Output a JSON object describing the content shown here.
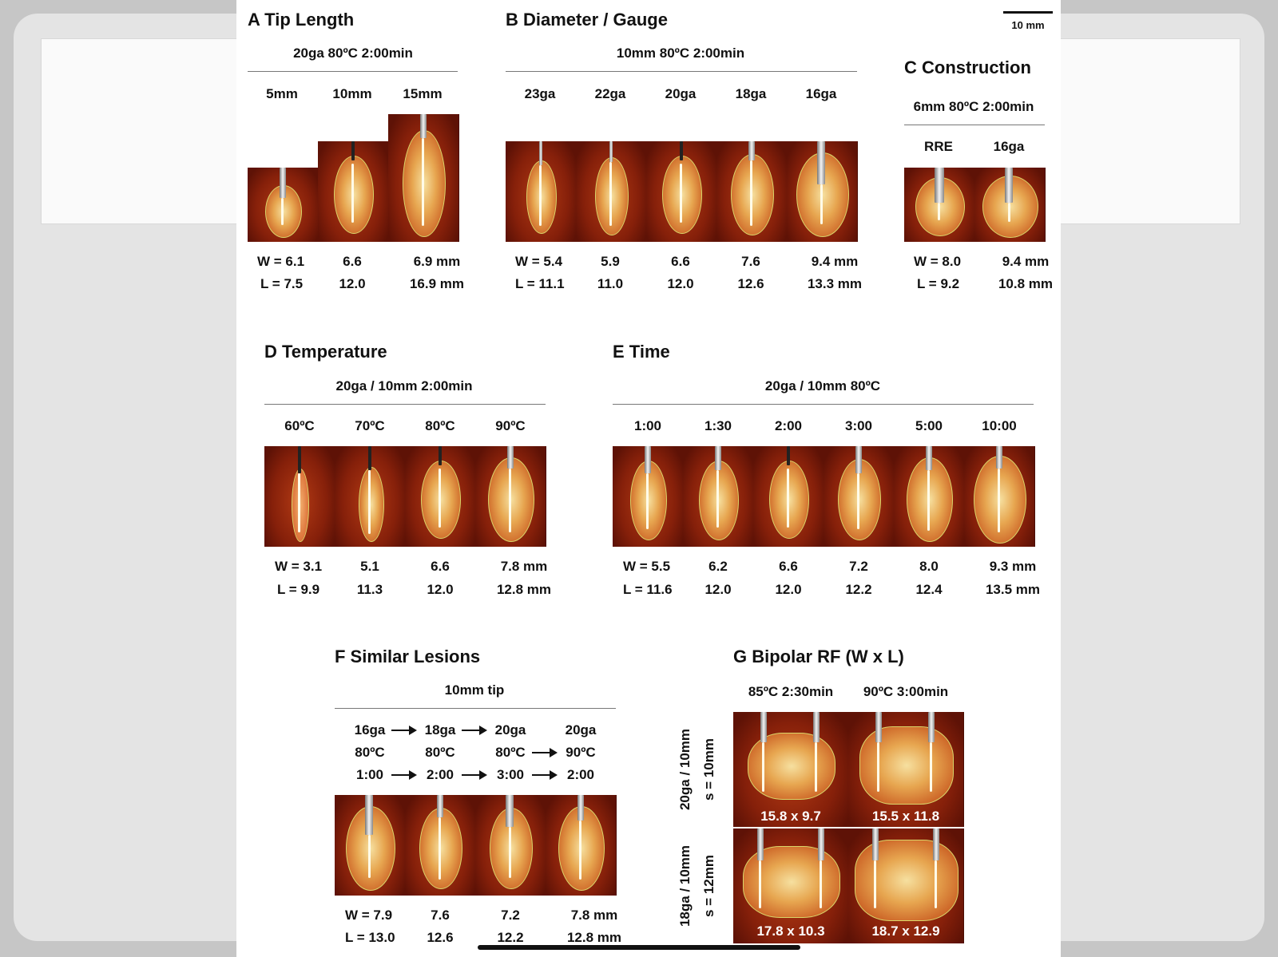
{
  "scale_bar": "10 mm",
  "panels": {
    "A": {
      "title": "A  Tip Length",
      "condition": "20ga  80ºC  2:00min",
      "columns": [
        "5mm",
        "10mm",
        "15mm"
      ],
      "w": [
        "W = 6.1",
        "6.6",
        "6.9  mm"
      ],
      "l": [
        "L = 7.5",
        "12.0",
        "16.9 mm"
      ]
    },
    "B": {
      "title": "B  Diameter / Gauge",
      "condition": "10mm  80ºC  2:00min",
      "columns": [
        "23ga",
        "22ga",
        "20ga",
        "18ga",
        "16ga"
      ],
      "w": [
        "W = 5.4",
        "5.9",
        "6.6",
        "7.6",
        "9.4  mm"
      ],
      "l": [
        "L = 11.1",
        "11.0",
        "12.0",
        "12.6",
        "13.3 mm"
      ]
    },
    "C": {
      "title": "C  Construction",
      "condition": "6mm  80ºC  2:00min",
      "columns": [
        "RRE",
        "16ga"
      ],
      "w": [
        "W = 8.0",
        "9.4  mm"
      ],
      "l": [
        "L = 9.2",
        "10.8 mm"
      ]
    },
    "D": {
      "title": "D  Temperature",
      "condition": "20ga / 10mm  2:00min",
      "columns": [
        "60ºC",
        "70ºC",
        "80ºC",
        "90ºC"
      ],
      "w": [
        "W = 3.1",
        "5.1",
        "6.6",
        "7.8  mm"
      ],
      "l": [
        "L = 9.9",
        "11.3",
        "12.0",
        "12.8 mm"
      ]
    },
    "E": {
      "title": "E  Time",
      "condition": "20ga / 10mm  80ºC",
      "columns": [
        "1:00",
        "1:30",
        "2:00",
        "3:00",
        "5:00",
        "10:00"
      ],
      "w": [
        "W = 5.5",
        "6.2",
        "6.6",
        "7.2",
        "8.0",
        "9.3  mm"
      ],
      "l": [
        "L = 11.6",
        "12.0",
        "12.0",
        "12.2",
        "12.4",
        "13.5 mm"
      ]
    },
    "F": {
      "title": "F  Similar Lesions",
      "condition": "10mm tip",
      "gauge_row": [
        "16ga",
        "18ga",
        "20ga",
        "20ga"
      ],
      "temp_row": [
        "80ºC",
        "80ºC",
        "80ºC",
        "90ºC"
      ],
      "time_row": [
        "1:00",
        "2:00",
        "3:00",
        "2:00"
      ],
      "w": [
        "W = 7.9",
        "7.6",
        "7.2",
        "7.8  mm"
      ],
      "l": [
        "L = 13.0",
        "12.6",
        "12.2",
        "12.8 mm"
      ]
    },
    "G": {
      "title": "G  Bipolar RF (W x L)",
      "columns": [
        "85ºC  2:30min",
        "90ºC  3:00min"
      ],
      "rows": [
        {
          "line1": "20ga / 10mm",
          "line2": "s = 10mm",
          "values": [
            "15.8 x 9.7",
            "15.5 x 11.8"
          ]
        },
        {
          "line1": "18ga / 10mm",
          "line2": "s = 12mm",
          "values": [
            "17.8 x 10.3",
            "18.7 x 12.9"
          ]
        }
      ]
    }
  }
}
